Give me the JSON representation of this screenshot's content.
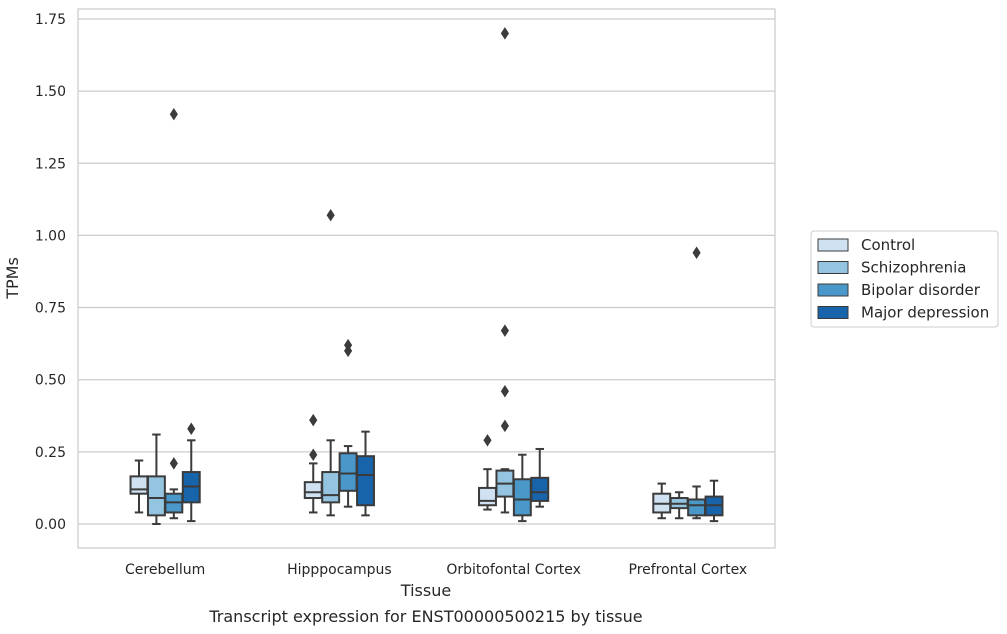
{
  "chart_data": {
    "type": "box",
    "title": "Transcript expression for ENST00000500215 by tissue",
    "xlabel": "Tissue",
    "ylabel": "TPMs",
    "ylim": [
      -0.08,
      1.78
    ],
    "yticks": [
      "0.00",
      "0.25",
      "0.50",
      "0.75",
      "1.00",
      "1.25",
      "1.50",
      "1.75"
    ],
    "categories": [
      "Cerebellum",
      "Hipppocampus",
      "Orbitofontal Cortex",
      "Prefrontal Cortex"
    ],
    "grid": "horizontal",
    "legend_position": "right",
    "series": [
      {
        "name": "Control",
        "color": "#d0e1f2",
        "boxes": [
          {
            "whisker_low": 0.04,
            "q1": 0.105,
            "median": 0.12,
            "q3": 0.165,
            "whisker_high": 0.22,
            "outliers": []
          },
          {
            "whisker_low": 0.04,
            "q1": 0.09,
            "median": 0.11,
            "q3": 0.145,
            "whisker_high": 0.21,
            "outliers": [
              0.24,
              0.36
            ]
          },
          {
            "whisker_low": 0.05,
            "q1": 0.065,
            "median": 0.08,
            "q3": 0.125,
            "whisker_high": 0.19,
            "outliers": [
              0.29
            ]
          },
          {
            "whisker_low": 0.02,
            "q1": 0.04,
            "median": 0.07,
            "q3": 0.105,
            "whisker_high": 0.14,
            "outliers": []
          }
        ]
      },
      {
        "name": "Schizophrenia",
        "color": "#94c4df",
        "boxes": [
          {
            "whisker_low": 0.0,
            "q1": 0.03,
            "median": 0.09,
            "q3": 0.165,
            "whisker_high": 0.31,
            "outliers": []
          },
          {
            "whisker_low": 0.03,
            "q1": 0.075,
            "median": 0.1,
            "q3": 0.18,
            "whisker_high": 0.29,
            "outliers": [
              1.07
            ]
          },
          {
            "whisker_low": 0.04,
            "q1": 0.095,
            "median": 0.14,
            "q3": 0.185,
            "whisker_high": 0.19,
            "outliers": [
              0.34,
              0.46,
              0.67,
              1.7
            ]
          },
          {
            "whisker_low": 0.02,
            "q1": 0.055,
            "median": 0.07,
            "q3": 0.09,
            "whisker_high": 0.11,
            "outliers": []
          }
        ]
      },
      {
        "name": "Bipolar disorder",
        "color": "#4a98c9",
        "boxes": [
          {
            "whisker_low": 0.02,
            "q1": 0.04,
            "median": 0.075,
            "q3": 0.105,
            "whisker_high": 0.12,
            "outliers": [
              0.21,
              1.42
            ]
          },
          {
            "whisker_low": 0.06,
            "q1": 0.115,
            "median": 0.175,
            "q3": 0.245,
            "whisker_high": 0.27,
            "outliers": [
              0.6,
              0.62
            ]
          },
          {
            "whisker_low": 0.01,
            "q1": 0.03,
            "median": 0.085,
            "q3": 0.155,
            "whisker_high": 0.24,
            "outliers": []
          },
          {
            "whisker_low": 0.02,
            "q1": 0.03,
            "median": 0.065,
            "q3": 0.085,
            "whisker_high": 0.13,
            "outliers": [
              0.94
            ]
          }
        ]
      },
      {
        "name": "Major depression",
        "color": "#1764ab",
        "boxes": [
          {
            "whisker_low": 0.01,
            "q1": 0.075,
            "median": 0.13,
            "q3": 0.18,
            "whisker_high": 0.29,
            "outliers": [
              0.33
            ]
          },
          {
            "whisker_low": 0.03,
            "q1": 0.065,
            "median": 0.17,
            "q3": 0.235,
            "whisker_high": 0.32,
            "outliers": []
          },
          {
            "whisker_low": 0.06,
            "q1": 0.08,
            "median": 0.11,
            "q3": 0.16,
            "whisker_high": 0.26,
            "outliers": []
          },
          {
            "whisker_low": 0.01,
            "q1": 0.03,
            "median": 0.065,
            "q3": 0.095,
            "whisker_high": 0.15,
            "outliers": []
          }
        ]
      }
    ]
  }
}
